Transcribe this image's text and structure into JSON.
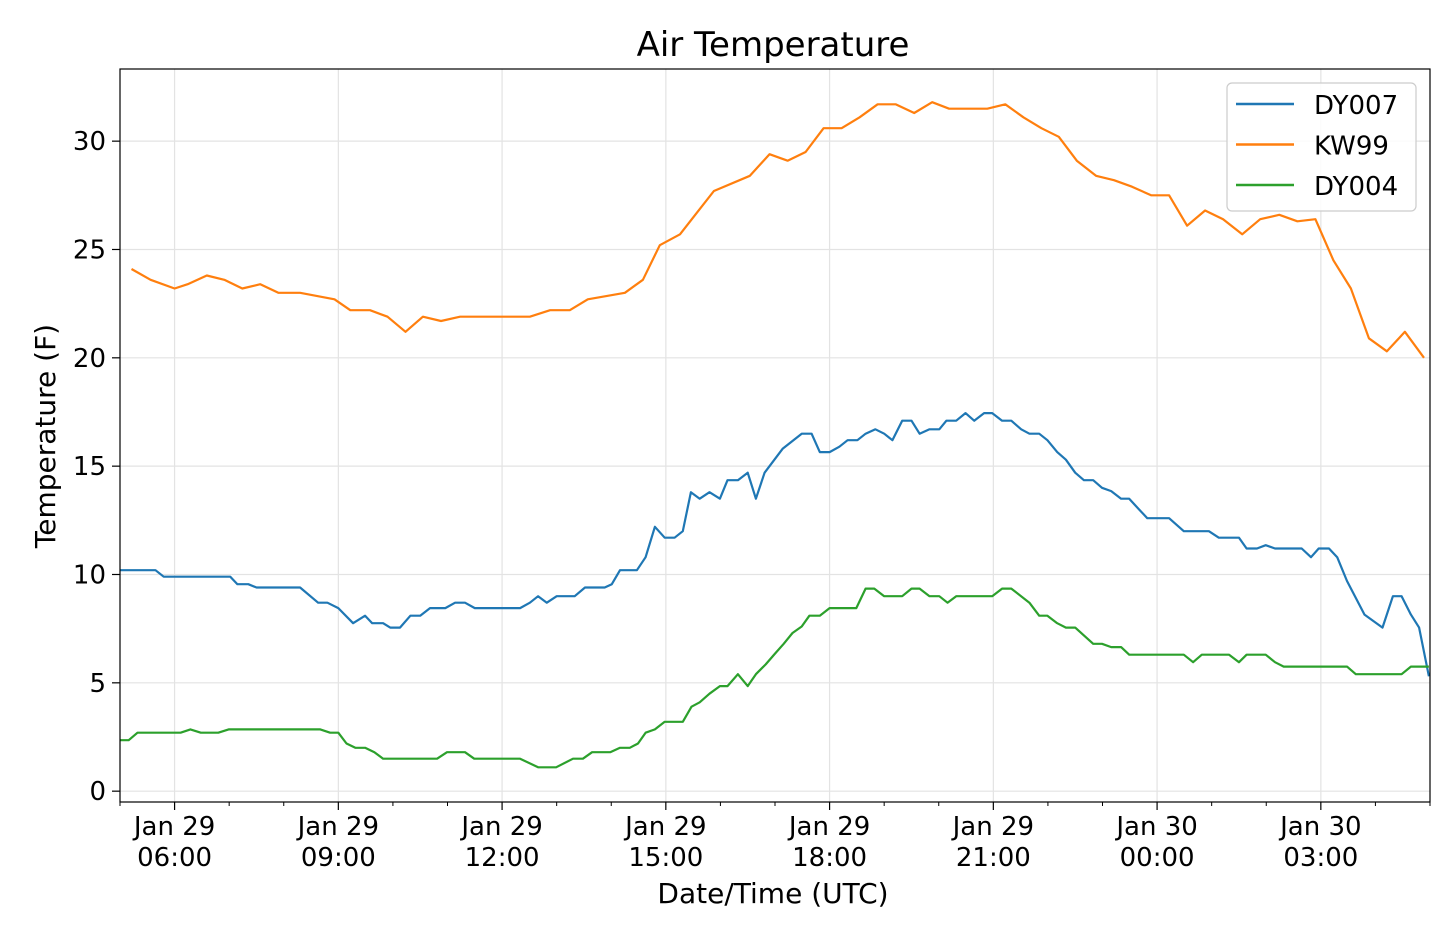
{
  "chart_data": {
    "type": "line",
    "title": "Air Temperature",
    "xlabel": "Date/Time (UTC)",
    "ylabel": "Temperature (F)",
    "x_units": "hours since Jan 29 00:00 UTC",
    "xlim": [
      5.0,
      29.0
    ],
    "ylim": [
      -0.5,
      33.33
    ],
    "grid": true,
    "legend_position": "top-right",
    "x_ticks": [
      {
        "value": 6,
        "label": [
          "Jan 29",
          "06:00"
        ]
      },
      {
        "value": 9,
        "label": [
          "Jan 29",
          "09:00"
        ]
      },
      {
        "value": 12,
        "label": [
          "Jan 29",
          "12:00"
        ]
      },
      {
        "value": 15,
        "label": [
          "Jan 29",
          "15:00"
        ]
      },
      {
        "value": 18,
        "label": [
          "Jan 29",
          "18:00"
        ]
      },
      {
        "value": 21,
        "label": [
          "Jan 29",
          "21:00"
        ]
      },
      {
        "value": 24,
        "label": [
          "Jan 30",
          "00:00"
        ]
      },
      {
        "value": 27,
        "label": [
          "Jan 30",
          "03:00"
        ]
      }
    ],
    "y_ticks": [
      0,
      5,
      10,
      15,
      20,
      25,
      30
    ],
    "series": [
      {
        "name": "DY007",
        "color": "#1f77b4",
        "x": [
          5.01,
          5.65,
          5.8,
          7.02,
          7.15,
          7.35,
          7.5,
          8.3,
          8.63,
          8.8,
          9.0,
          9.27,
          9.49,
          9.62,
          9.82,
          9.95,
          10.13,
          10.32,
          10.5,
          10.68,
          10.96,
          11.14,
          11.32,
          11.5,
          12.33,
          12.51,
          12.66,
          12.82,
          13.0,
          13.33,
          13.52,
          13.88,
          14.01,
          14.16,
          14.47,
          14.63,
          14.8,
          14.98,
          15.16,
          15.31,
          15.46,
          15.62,
          15.8,
          15.99,
          16.13,
          16.32,
          16.5,
          16.65,
          16.81,
          17.14,
          17.49,
          17.67,
          17.82,
          18.0,
          18.18,
          18.33,
          18.51,
          18.66,
          18.84,
          19.0,
          19.15,
          19.33,
          19.5,
          19.65,
          19.83,
          20.01,
          20.14,
          20.32,
          20.49,
          20.65,
          20.83,
          20.98,
          21.16,
          21.33,
          21.51,
          21.66,
          21.84,
          21.99,
          22.17,
          22.33,
          22.5,
          22.66,
          22.83,
          22.99,
          23.16,
          23.34,
          23.49,
          23.67,
          23.82,
          24.22,
          24.49,
          24.95,
          25.13,
          25.5,
          25.64,
          25.83,
          25.99,
          26.16,
          26.65,
          26.82,
          26.96,
          27.15,
          27.3,
          27.48,
          27.8,
          28.13,
          28.32,
          28.48,
          28.65,
          28.8,
          28.98
        ],
        "y": [
          10.2,
          10.2,
          9.9,
          9.9,
          9.55,
          9.55,
          9.4,
          9.4,
          8.7,
          8.7,
          8.45,
          7.75,
          8.1,
          7.75,
          7.75,
          7.55,
          7.55,
          8.1,
          8.1,
          8.45,
          8.45,
          8.7,
          8.7,
          8.45,
          8.45,
          8.7,
          9.0,
          8.7,
          9.0,
          9.0,
          9.4,
          9.4,
          9.55,
          10.2,
          10.2,
          10.8,
          12.2,
          11.7,
          11.7,
          12.0,
          13.8,
          13.5,
          13.8,
          13.5,
          14.35,
          14.35,
          14.7,
          13.5,
          14.7,
          15.8,
          16.5,
          16.5,
          15.65,
          15.65,
          15.9,
          16.2,
          16.2,
          16.5,
          16.7,
          16.5,
          16.2,
          17.1,
          17.1,
          16.5,
          16.7,
          16.7,
          17.1,
          17.1,
          17.45,
          17.1,
          17.45,
          17.45,
          17.1,
          17.1,
          16.7,
          16.5,
          16.5,
          16.2,
          15.65,
          15.3,
          14.7,
          14.35,
          14.35,
          14.0,
          13.85,
          13.5,
          13.5,
          13.0,
          12.6,
          12.6,
          12.0,
          12.0,
          11.7,
          11.7,
          11.2,
          11.2,
          11.35,
          11.2,
          11.2,
          10.8,
          11.2,
          11.2,
          10.8,
          9.7,
          8.15,
          7.55,
          9.0,
          9.0,
          8.15,
          7.55,
          5.3
        ]
      },
      {
        "name": "KW99",
        "color": "#ff7f0e",
        "x": [
          5.21,
          5.56,
          6.0,
          6.24,
          6.59,
          6.91,
          7.24,
          7.57,
          7.9,
          8.3,
          8.93,
          9.22,
          9.58,
          9.9,
          10.23,
          10.55,
          10.88,
          11.23,
          12.51,
          12.88,
          13.24,
          13.57,
          14.25,
          14.58,
          14.89,
          15.26,
          15.57,
          15.88,
          16.54,
          16.9,
          17.23,
          17.56,
          17.89,
          18.22,
          18.55,
          18.88,
          19.21,
          19.55,
          19.88,
          20.19,
          20.89,
          21.22,
          21.55,
          21.88,
          22.2,
          22.53,
          22.88,
          23.21,
          23.54,
          23.89,
          24.22,
          24.55,
          24.88,
          25.21,
          25.56,
          25.89,
          26.24,
          26.57,
          26.9,
          27.23,
          27.55,
          27.88,
          28.21,
          28.54,
          28.89
        ],
        "y": [
          24.1,
          23.6,
          23.2,
          23.4,
          23.8,
          23.6,
          23.2,
          23.4,
          23.0,
          23.0,
          22.7,
          22.2,
          22.2,
          21.9,
          21.2,
          21.9,
          21.7,
          21.9,
          21.9,
          22.2,
          22.2,
          22.7,
          23.0,
          23.6,
          25.2,
          25.7,
          26.7,
          27.7,
          28.4,
          29.4,
          29.1,
          29.5,
          30.6,
          30.6,
          31.1,
          31.7,
          31.7,
          31.3,
          31.8,
          31.5,
          31.5,
          31.7,
          31.1,
          30.6,
          30.2,
          29.1,
          28.4,
          28.2,
          27.9,
          27.5,
          27.5,
          26.1,
          26.8,
          26.4,
          25.7,
          26.4,
          26.6,
          26.3,
          26.4,
          24.5,
          23.2,
          20.9,
          20.3,
          21.2,
          20.0
        ]
      },
      {
        "name": "DY004",
        "color": "#2ca02c",
        "x": [
          5.01,
          5.16,
          5.32,
          6.11,
          6.29,
          6.48,
          6.8,
          6.99,
          8.67,
          8.85,
          9.0,
          9.15,
          9.31,
          9.49,
          9.66,
          9.82,
          10.81,
          10.99,
          11.32,
          11.49,
          12.33,
          12.66,
          12.99,
          13.3,
          13.48,
          13.65,
          13.98,
          14.16,
          14.34,
          14.49,
          14.63,
          14.8,
          14.98,
          15.31,
          15.47,
          15.62,
          15.8,
          15.99,
          16.13,
          16.32,
          16.5,
          16.65,
          16.83,
          17.0,
          17.16,
          17.32,
          17.49,
          17.63,
          17.82,
          18.0,
          18.49,
          18.66,
          18.82,
          19.0,
          19.33,
          19.5,
          19.65,
          19.83,
          20.01,
          20.16,
          20.32,
          20.98,
          21.16,
          21.33,
          21.66,
          21.84,
          21.99,
          22.17,
          22.33,
          22.5,
          22.83,
          22.99,
          23.16,
          23.34,
          23.49,
          24.49,
          24.66,
          24.82,
          25.32,
          25.5,
          25.64,
          25.99,
          26.16,
          26.32,
          27.48,
          27.64,
          28.48,
          28.65,
          28.98
        ],
        "y": [
          2.35,
          2.35,
          2.7,
          2.7,
          2.85,
          2.7,
          2.7,
          2.85,
          2.85,
          2.7,
          2.7,
          2.2,
          2.0,
          2.0,
          1.8,
          1.5,
          1.5,
          1.8,
          1.8,
          1.5,
          1.5,
          1.1,
          1.1,
          1.5,
          1.5,
          1.8,
          1.8,
          2.0,
          2.0,
          2.2,
          2.7,
          2.85,
          3.2,
          3.2,
          3.9,
          4.1,
          4.5,
          4.85,
          4.85,
          5.4,
          4.85,
          5.4,
          5.85,
          6.35,
          6.8,
          7.3,
          7.6,
          8.1,
          8.1,
          8.45,
          8.45,
          9.35,
          9.35,
          9.0,
          9.0,
          9.35,
          9.35,
          9.0,
          9.0,
          8.7,
          9.0,
          9.0,
          9.35,
          9.35,
          8.7,
          8.1,
          8.1,
          7.75,
          7.55,
          7.55,
          6.8,
          6.8,
          6.65,
          6.65,
          6.3,
          6.3,
          5.95,
          6.3,
          6.3,
          5.95,
          6.3,
          6.3,
          5.95,
          5.75,
          5.75,
          5.4,
          5.4,
          5.75,
          5.75
        ]
      }
    ]
  }
}
